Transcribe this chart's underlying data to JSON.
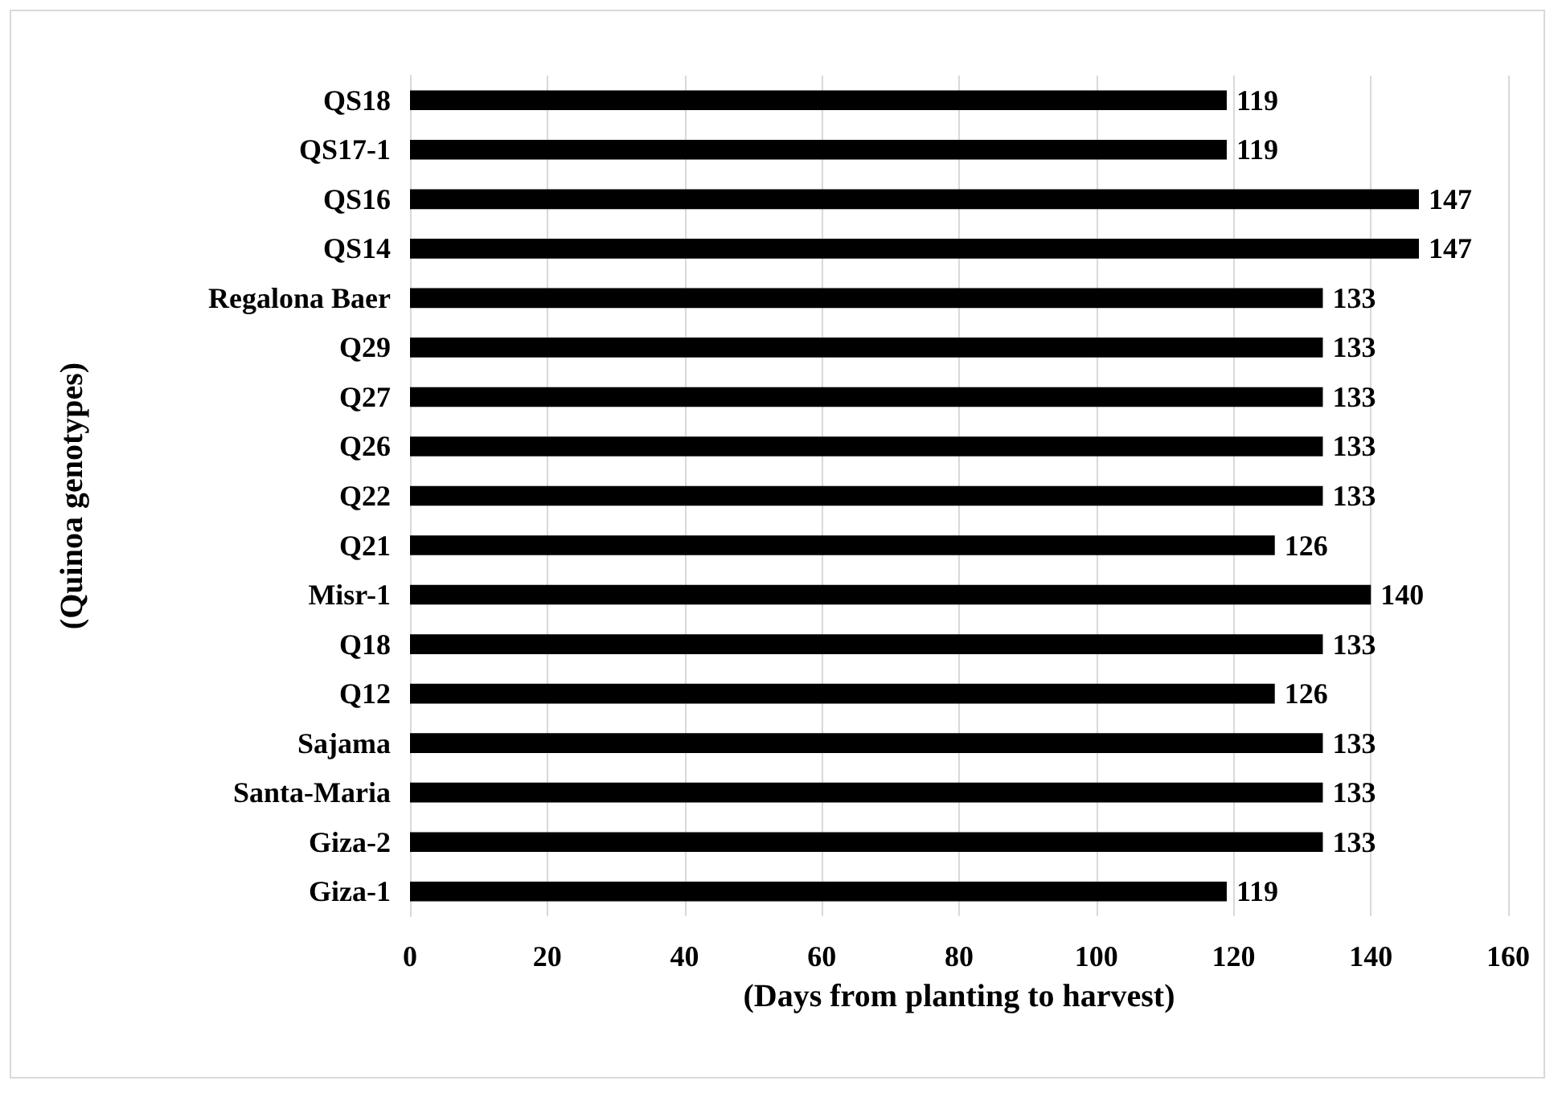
{
  "chart_data": {
    "type": "bar",
    "orientation": "horizontal",
    "xlabel": "(Days from planting to harvest)",
    "ylabel": "(Quinoa genotypes)",
    "categories": [
      "QS18",
      "QS17-1",
      "QS16",
      "QS14",
      "Regalona Baer",
      "Q29",
      "Q27",
      "Q26",
      "Q22",
      "Q21",
      "Misr-1",
      "Q18",
      "Q12",
      "Sajama",
      "Santa-Maria",
      "Giza-2",
      "Giza-1"
    ],
    "values": [
      119,
      119,
      147,
      147,
      133,
      133,
      133,
      133,
      133,
      126,
      140,
      133,
      126,
      133,
      133,
      133,
      119
    ],
    "color": "#000000",
    "xlim": [
      0,
      160
    ],
    "xticks": [
      0,
      20,
      40,
      60,
      80,
      100,
      120,
      140,
      160
    ],
    "grid": "x",
    "data_labels": true
  }
}
